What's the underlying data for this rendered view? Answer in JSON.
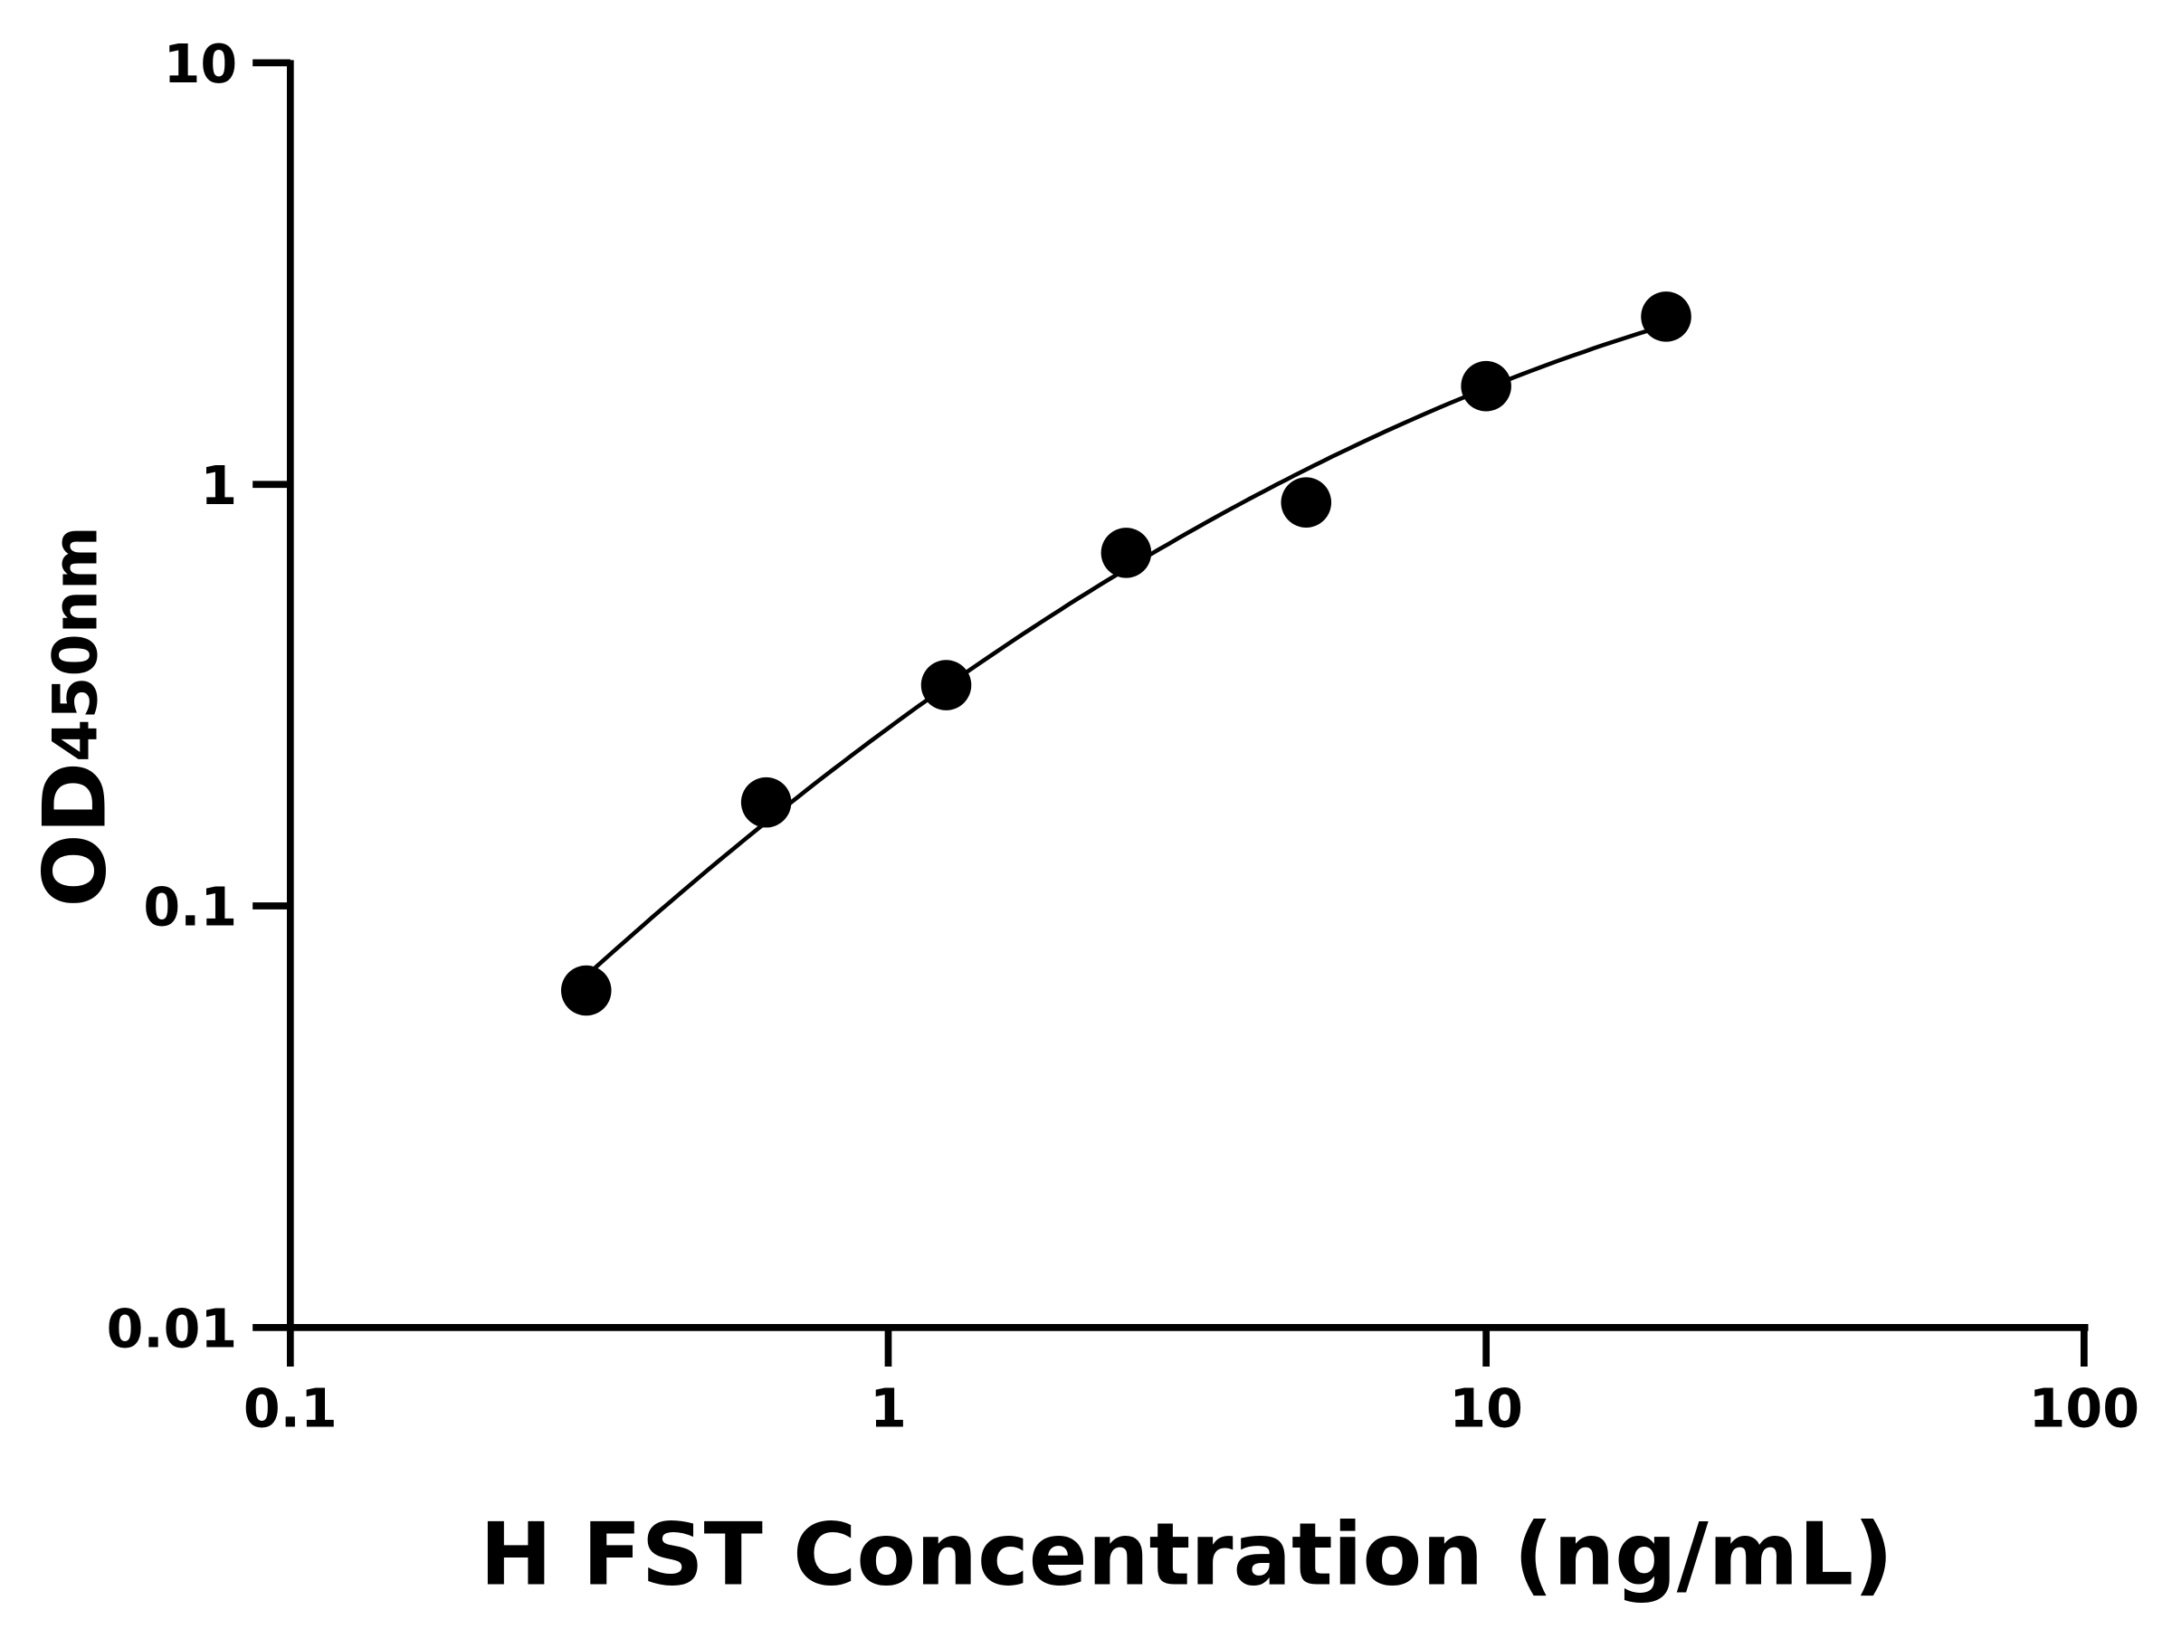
{
  "chart_data": {
    "type": "scatter",
    "title": "",
    "xlabel": "H FST Concentration (ng/mL)",
    "ylabel": "OD",
    "ylabel_subscript": "450nm",
    "x_scale": "log",
    "y_scale": "log",
    "xlim": [
      0.1,
      100
    ],
    "ylim": [
      0.01,
      10
    ],
    "x_ticks": [
      "0.1",
      "1",
      "10",
      "100"
    ],
    "y_ticks": [
      "0.01",
      "0.1",
      "1",
      "10"
    ],
    "grid": false,
    "legend": "none",
    "series": [
      {
        "x": [
          0.3125,
          0.625,
          1.25,
          2.5,
          5,
          10,
          20
        ],
        "y": [
          0.063,
          0.176,
          0.334,
          0.688,
          0.906,
          1.71,
          2.5
        ],
        "fit_curve": true,
        "color": "#000000"
      }
    ]
  }
}
